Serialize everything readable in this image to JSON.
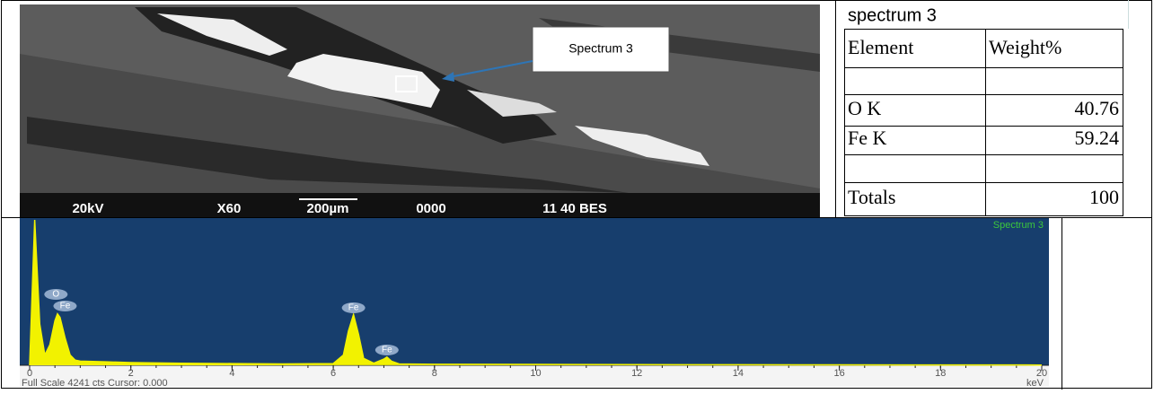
{
  "sem_image": {
    "bar_texts": [
      "20kV",
      "X60",
      "200µm",
      "0000",
      "11 40 BES"
    ],
    "callout": "Spectrum 3"
  },
  "table": {
    "title": "spectrum 3",
    "header": [
      "Element",
      "Weight%"
    ],
    "rows": [
      [
        "O K",
        "40.76"
      ],
      [
        "Fe K",
        "59.24"
      ],
      [
        "Totals",
        "100"
      ]
    ]
  },
  "chart_data": {
    "type": "line",
    "title": "Spectrum 3",
    "color": "#f2f200",
    "x": [
      0,
      0.1,
      0.2,
      0.3,
      0.4,
      0.5,
      0.55,
      0.6,
      0.7,
      0.8,
      0.9,
      1,
      1.5,
      2,
      3,
      4,
      5,
      6,
      6.2,
      6.3,
      6.4,
      6.5,
      6.6,
      6.8,
      7.0,
      7.06,
      7.15,
      7.3,
      8,
      10,
      12,
      14,
      16,
      18,
      20
    ],
    "values": [
      0,
      4241,
      1200,
      300,
      600,
      1300,
      1500,
      1400,
      800,
      300,
      150,
      120,
      100,
      80,
      60,
      50,
      40,
      50,
      300,
      1000,
      1480,
      900,
      200,
      60,
      180,
      240,
      120,
      40,
      30,
      25,
      20,
      15,
      12,
      10,
      8
    ],
    "xlim": [
      0,
      20
    ],
    "xticks": [
      0,
      2,
      4,
      6,
      8,
      10,
      12,
      14,
      16,
      18,
      20
    ],
    "ylim": [
      0,
      4241
    ],
    "x_label": "keV",
    "footer": "Full Scale 4241 cts Cursor: 0.000",
    "peak_labels": [
      {
        "label": "O",
        "x": 0.52
      },
      {
        "label": "Fe",
        "x": 0.7
      },
      {
        "label": "Fe",
        "x": 6.4
      },
      {
        "label": "Fe",
        "x": 7.06
      }
    ]
  }
}
